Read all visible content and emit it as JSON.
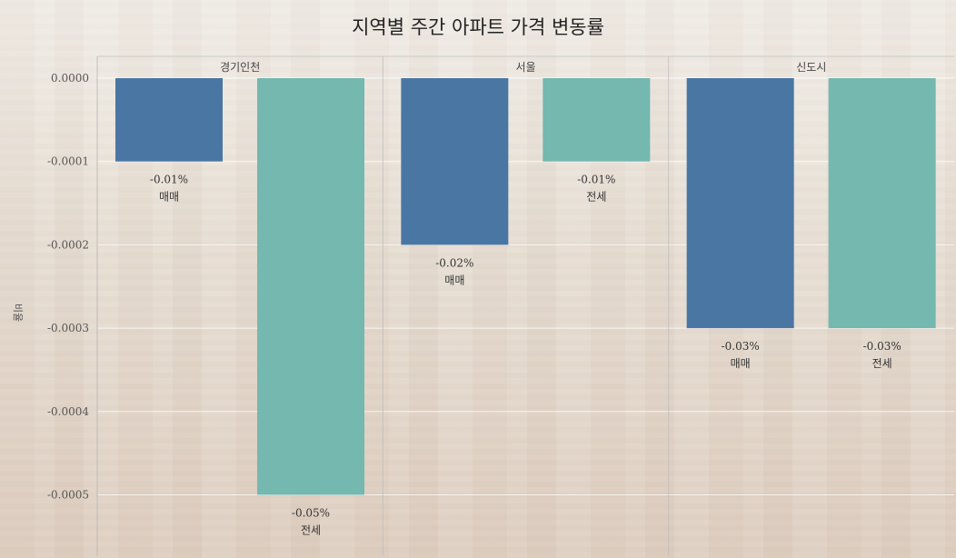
{
  "chart_data": {
    "type": "bar",
    "title": "지역별 주간 아파트 가격 변동률",
    "ylabel": "비율",
    "ylim": [
      -0.00057,
      2e-05
    ],
    "yticks": [
      "0.0000",
      "-0.0001",
      "-0.0002",
      "-0.0003",
      "-0.0004",
      "-0.0005"
    ],
    "ytick_values": [
      0,
      -0.0001,
      -0.0002,
      -0.0003,
      -0.0004,
      -0.0005
    ],
    "grid": true,
    "legend": "none",
    "colors": {
      "매매": "#4a76a4",
      "전세": "#74b8b0"
    },
    "facets": [
      {
        "name": "경기인천",
        "bars": [
          {
            "category": "매매",
            "value": -0.0001,
            "label": "-0.01%"
          },
          {
            "category": "전세",
            "value": -0.0005,
            "label": "-0.05%"
          }
        ]
      },
      {
        "name": "서울",
        "bars": [
          {
            "category": "매매",
            "value": -0.0002,
            "label": "-0.02%"
          },
          {
            "category": "전세",
            "value": -0.0001,
            "label": "-0.01%"
          }
        ]
      },
      {
        "name": "신도시",
        "bars": [
          {
            "category": "매매",
            "value": -0.0003,
            "label": "-0.03%"
          },
          {
            "category": "전세",
            "value": -0.0003,
            "label": "-0.03%"
          }
        ]
      }
    ]
  }
}
